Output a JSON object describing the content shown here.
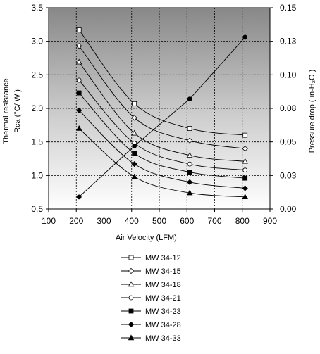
{
  "chart_data": {
    "type": "line",
    "title": "",
    "xlabel": "Air Velocity (LFM)",
    "ylabel": "Thermal resistance",
    "ylabel_line2": "Rca (°C/ W )",
    "y2label": "Pressure drop  ( in-H₂O )",
    "xlim": [
      100,
      900
    ],
    "ylim": [
      0.5,
      3.5
    ],
    "y2lim": [
      0,
      0.15
    ],
    "xticks": [
      "100",
      "200",
      "300",
      "400",
      "500",
      "600",
      "700",
      "800",
      "900"
    ],
    "yticks": [
      "0.5",
      "1.0",
      "1.5",
      "2.0",
      "2.5",
      "3.0",
      "3.5"
    ],
    "y2ticks": [
      "0.00",
      "0.03",
      "0.05",
      "0.08",
      "0.10",
      "0.13",
      "0.15"
    ],
    "grid": true,
    "legend_position": "bottom",
    "x": [
      210,
      410,
      610,
      810
    ],
    "series": [
      {
        "name": "MW 34-12",
        "values": [
          3.17,
          2.07,
          1.7,
          1.6
        ],
        "marker": "square-open"
      },
      {
        "name": "MW 34-15",
        "values": [
          2.93,
          1.86,
          1.52,
          1.4
        ],
        "marker": "diamond-open"
      },
      {
        "name": "MW 34-18",
        "values": [
          2.69,
          1.63,
          1.3,
          1.21
        ],
        "marker": "triangle-open"
      },
      {
        "name": "MW 34-21",
        "values": [
          2.42,
          1.48,
          1.17,
          1.08
        ],
        "marker": "circle-open"
      },
      {
        "name": "MW 34-23",
        "values": [
          2.23,
          1.33,
          1.05,
          0.96
        ],
        "marker": "square-filled"
      },
      {
        "name": "MW 34-28",
        "values": [
          1.97,
          1.17,
          0.9,
          0.81
        ],
        "marker": "diamond-filled"
      },
      {
        "name": "MW 34-33",
        "values": [
          1.7,
          0.98,
          0.74,
          0.68
        ],
        "marker": "triangle-filled"
      }
    ],
    "pressure_series": {
      "name": "",
      "axis": "right",
      "marker": "circle-filled",
      "values": [
        0.009,
        0.047,
        0.082,
        0.128
      ]
    }
  }
}
